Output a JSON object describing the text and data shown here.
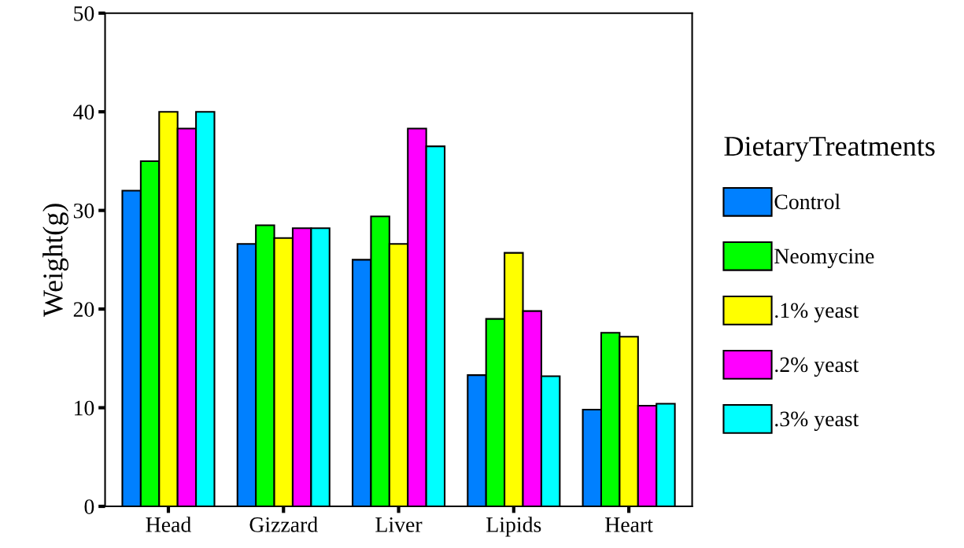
{
  "chart_data": {
    "type": "bar",
    "ylabel": "Weight(g)",
    "legend_title": "DietaryTreatments",
    "legend": "right",
    "grid": false,
    "categories": [
      "Head",
      "Gizzard",
      "Liver",
      "Lipids",
      "Heart"
    ],
    "ylim": [
      0,
      50
    ],
    "yticks": [
      0,
      10,
      20,
      30,
      40,
      50
    ],
    "series": [
      {
        "name": "Control",
        "color": "#0080ff",
        "values": [
          32.0,
          26.6,
          25.0,
          13.3,
          9.8
        ]
      },
      {
        "name": "Neomycine",
        "color": "#00ff00",
        "values": [
          35.0,
          28.5,
          29.4,
          19.0,
          17.6
        ]
      },
      {
        "name": ".1% yeast",
        "color": "#ffff00",
        "values": [
          40.0,
          27.2,
          26.6,
          25.7,
          17.2
        ]
      },
      {
        "name": ".2% yeast",
        "color": "#ff00ff",
        "values": [
          38.3,
          28.2,
          38.3,
          19.8,
          10.2
        ]
      },
      {
        "name": ".3% yeast",
        "color": "#00ffff",
        "values": [
          40.0,
          28.2,
          36.5,
          13.2,
          10.4
        ]
      }
    ]
  }
}
